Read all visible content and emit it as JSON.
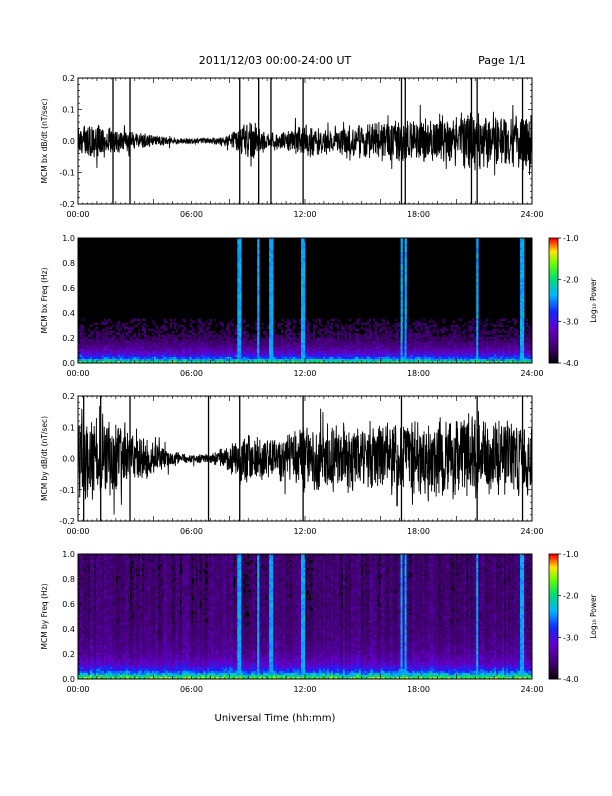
{
  "header": {
    "title": "2011/12/03  00:00-24:00 UT",
    "page": "Page 1/1"
  },
  "chart_data": [
    {
      "type": "line",
      "ylabel": "MCM bx dB/dt (nT/sec)",
      "xlim": [
        "00:00",
        "24:00"
      ],
      "ylim": [
        -0.2,
        0.2
      ],
      "xticks": [
        "00:00",
        "06:00",
        "12:00",
        "18:00",
        "24:00"
      ],
      "yticks": [
        "-0.2",
        "-0.1",
        "0.0",
        "0.1",
        "0.2"
      ],
      "spikes_hours": [
        1.85,
        2.75,
        8.55,
        9.55,
        10.2,
        11.9,
        17.1,
        17.3,
        20.8,
        21.1,
        23.5
      ],
      "amplitude_profile": [
        [
          0,
          0.035
        ],
        [
          1,
          0.035
        ],
        [
          2,
          0.03
        ],
        [
          3,
          0.02
        ],
        [
          4,
          0.012
        ],
        [
          5,
          0.008
        ],
        [
          6,
          0.006
        ],
        [
          7,
          0.006
        ],
        [
          8,
          0.015
        ],
        [
          9,
          0.045
        ],
        [
          10,
          0.02
        ],
        [
          11,
          0.02
        ],
        [
          12,
          0.04
        ],
        [
          13,
          0.03
        ],
        [
          14,
          0.035
        ],
        [
          15,
          0.04
        ],
        [
          16,
          0.045
        ],
        [
          17,
          0.05
        ],
        [
          18,
          0.05
        ],
        [
          19,
          0.055
        ],
        [
          20,
          0.06
        ],
        [
          21,
          0.065
        ],
        [
          22,
          0.06
        ],
        [
          23,
          0.06
        ],
        [
          24,
          0.06
        ]
      ]
    },
    {
      "type": "heatmap",
      "ylabel": "MCM bx Freq (Hz)",
      "xlim": [
        "00:00",
        "24:00"
      ],
      "ylim": [
        0.0,
        1.0
      ],
      "xticks": [
        "00:00",
        "06:00",
        "12:00",
        "18:00",
        "24:00"
      ],
      "yticks": [
        "0.0",
        "0.2",
        "0.4",
        "0.6",
        "0.8",
        "1.0"
      ],
      "colorbar": {
        "label": "Log₁₀ Power",
        "range": [
          -4.0,
          -1.0
        ],
        "ticks": [
          "-1.0",
          "-2.0",
          "-3.0",
          "-4.0"
        ]
      },
      "bright_columns_hours": [
        8.55,
        9.55,
        10.2,
        11.9,
        17.1,
        17.3,
        21.1,
        23.5
      ]
    },
    {
      "type": "line",
      "ylabel": "MCM by dB/dt (nT/sec)",
      "xlim": [
        "00:00",
        "24:00"
      ],
      "ylim": [
        -0.2,
        0.2
      ],
      "xticks": [
        "00:00",
        "06:00",
        "12:00",
        "18:00",
        "24:00"
      ],
      "yticks": [
        "-0.2",
        "-0.1",
        "0.0",
        "0.1",
        "0.2"
      ],
      "spikes_hours": [
        0.3,
        1.2,
        2.75,
        6.9,
        8.55,
        11.9,
        17.1,
        21.1,
        23.5
      ],
      "amplitude_profile": [
        [
          0,
          0.09
        ],
        [
          1,
          0.09
        ],
        [
          2,
          0.08
        ],
        [
          3,
          0.06
        ],
        [
          4,
          0.035
        ],
        [
          5,
          0.015
        ],
        [
          6,
          0.01
        ],
        [
          7,
          0.012
        ],
        [
          8,
          0.03
        ],
        [
          9,
          0.06
        ],
        [
          10,
          0.04
        ],
        [
          11,
          0.05
        ],
        [
          12,
          0.08
        ],
        [
          13,
          0.07
        ],
        [
          14,
          0.075
        ],
        [
          15,
          0.07
        ],
        [
          16,
          0.08
        ],
        [
          17,
          0.085
        ],
        [
          18,
          0.085
        ],
        [
          19,
          0.09
        ],
        [
          20,
          0.09
        ],
        [
          21,
          0.09
        ],
        [
          22,
          0.085
        ],
        [
          23,
          0.085
        ],
        [
          24,
          0.085
        ]
      ]
    },
    {
      "type": "heatmap",
      "ylabel": "MCM by Freq (Hz)",
      "xlim": [
        "00:00",
        "24:00"
      ],
      "ylim": [
        0.0,
        1.0
      ],
      "xticks": [
        "00:00",
        "06:00",
        "12:00",
        "18:00",
        "24:00"
      ],
      "yticks": [
        "0.0",
        "0.2",
        "0.4",
        "0.6",
        "0.8",
        "1.0"
      ],
      "colorbar": {
        "label": "Log₁₀ Power",
        "range": [
          -4.0,
          -1.0
        ],
        "ticks": [
          "-1.0",
          "-2.0",
          "-3.0",
          "-4.0"
        ]
      },
      "bright_columns_hours": [
        8.55,
        9.55,
        10.2,
        11.9,
        17.1,
        17.3,
        21.1,
        23.5
      ]
    }
  ],
  "footer": {
    "xlabel": "Universal Time (hh:mm)"
  }
}
